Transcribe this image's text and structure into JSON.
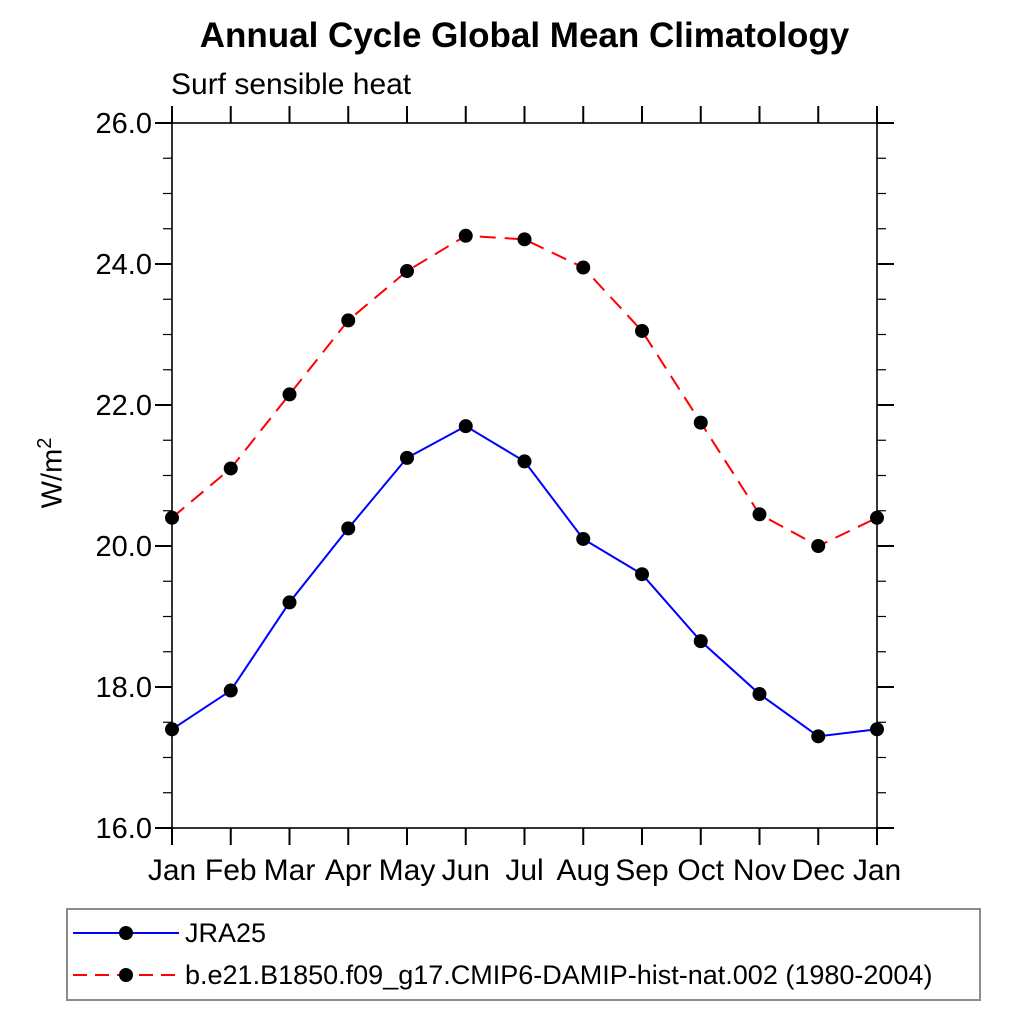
{
  "chart": {
    "title": "Annual Cycle Global Mean Climatology",
    "subtitle": "Surf sensible heat",
    "ylabel_base": "W/m",
    "ylabel_sup": "2"
  },
  "legend": {
    "items": [
      {
        "label": "JRA25",
        "color": "#0000ff",
        "line_style": "solid",
        "marker": "filled-circle",
        "marker_color": "#000000"
      },
      {
        "label": "b.e21.B1850.f09_g17.CMIP6-DAMIP-hist-nat.002 (1980-2004)",
        "color": "#ff0000",
        "line_style": "dashed",
        "marker": "filled-circle",
        "marker_color": "#000000"
      }
    ]
  },
  "chart_data": {
    "type": "line",
    "title": "Annual Cycle Global Mean Climatology",
    "subtitle": "Surf sensible heat",
    "xlabel": "",
    "ylabel": "W/m²",
    "categories": [
      "Jan",
      "Feb",
      "Mar",
      "Apr",
      "May",
      "Jun",
      "Jul",
      "Aug",
      "Sep",
      "Oct",
      "Nov",
      "Dec",
      "Jan"
    ],
    "ylim": [
      16.0,
      26.0
    ],
    "ytick_major": [
      16.0,
      18.0,
      20.0,
      22.0,
      24.0,
      26.0
    ],
    "ytick_major_labels": [
      "16.0",
      "18.0",
      "20.0",
      "22.0",
      "24.0",
      "26.0"
    ],
    "ytick_minor_step": 0.5,
    "grid": false,
    "legend_position": "bottom-left-box",
    "series": [
      {
        "name": "JRA25",
        "color": "#0000ff",
        "line_style": "solid",
        "marker": "filled-circle",
        "marker_color": "#000000",
        "values": [
          17.4,
          17.95,
          19.2,
          20.25,
          21.25,
          21.7,
          21.2,
          20.1,
          19.6,
          18.65,
          17.9,
          17.3,
          17.4
        ]
      },
      {
        "name": "b.e21.B1850.f09_g17.CMIP6-DAMIP-hist-nat.002 (1980-2004)",
        "color": "#ff0000",
        "line_style": "dashed",
        "marker": "filled-circle",
        "marker_color": "#000000",
        "values": [
          20.4,
          21.1,
          22.15,
          23.2,
          23.9,
          24.4,
          24.35,
          23.95,
          23.05,
          21.75,
          20.45,
          20.0,
          20.4
        ]
      }
    ]
  }
}
